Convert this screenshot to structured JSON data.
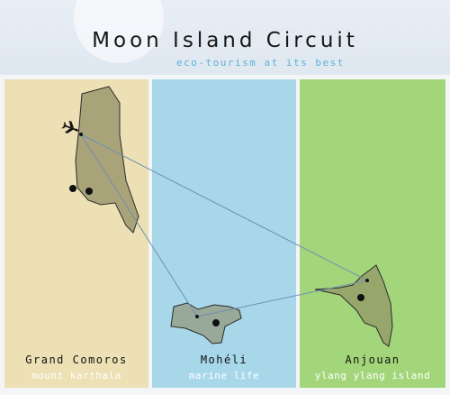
{
  "header": {
    "title": "Moon Island Circuit",
    "subtitle": "eco-tourism at its best"
  },
  "colors": {
    "panel_left": "#ede0b4",
    "panel_middle": "#a7d7e9",
    "panel_right": "#a3d67a",
    "subtitle": "#5bb2d4",
    "island_fill": "#8f8b64",
    "route_line": "#6f8fb1"
  },
  "islands": [
    {
      "name": "Grand Comoros",
      "caption": "mount karthala",
      "icons": [
        "airplane-icon"
      ]
    },
    {
      "name": "Mohéli",
      "caption": "marine life",
      "icons": []
    },
    {
      "name": "Anjouan",
      "caption": "ylang ylang island",
      "icons": []
    }
  ]
}
